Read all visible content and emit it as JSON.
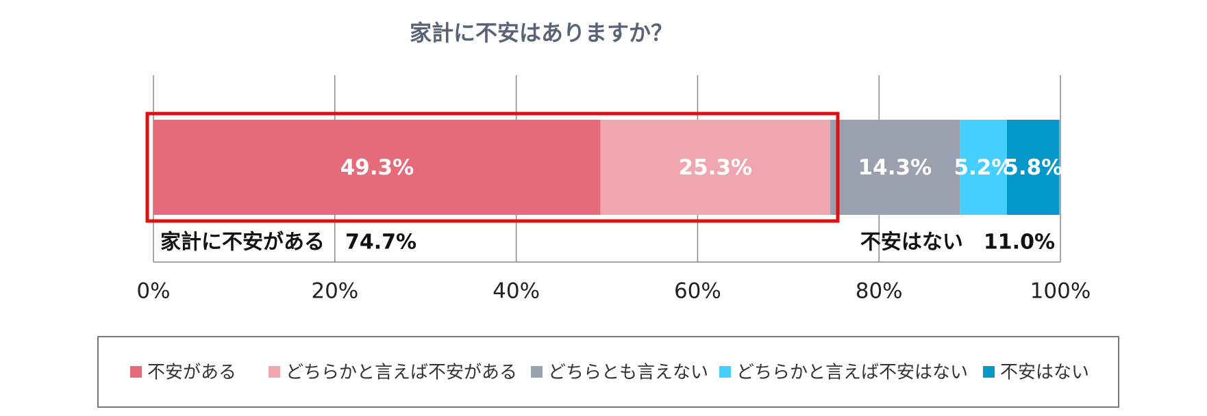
{
  "chart_data": {
    "type": "stacked-bar-horizontal",
    "title": "家計に不安はありますか？",
    "categories": [
      null
    ],
    "series": [
      {
        "name": "不安がある",
        "color": "#e56b7b",
        "values": [
          49.3
        ],
        "value_labels": [
          "49.3%"
        ]
      },
      {
        "name": "どちらかと言えば不安がある",
        "color": "#f0a6ae",
        "values": [
          25.3
        ],
        "value_labels": [
          "25.3%"
        ]
      },
      {
        "name": "どちらとも言えない",
        "color": "#9aa0b0",
        "values": [
          14.3
        ],
        "value_labels": [
          "14.3%"
        ]
      },
      {
        "name": "どちらかと言えば不安はない",
        "color": "#45cfff",
        "values": [
          5.2
        ],
        "value_labels": [
          "5.2%"
        ]
      },
      {
        "name": "不安はない",
        "color": "#0398c9",
        "values": [
          5.8
        ],
        "value_labels": [
          "5.8%"
        ]
      }
    ],
    "xlim": [
      0,
      100
    ],
    "xticks": [
      {
        "value": 0,
        "label": "0%"
      },
      {
        "value": 20,
        "label": "20%"
      },
      {
        "value": 40,
        "label": "40%"
      },
      {
        "value": 60,
        "label": "60%"
      },
      {
        "value": 80,
        "label": "80%"
      },
      {
        "value": 100,
        "label": "100%"
      }
    ],
    "grid": true,
    "legend": "bottom",
    "annotations": [
      "家計に不安がある　74.7%",
      "不安はない　11.0%"
    ]
  }
}
